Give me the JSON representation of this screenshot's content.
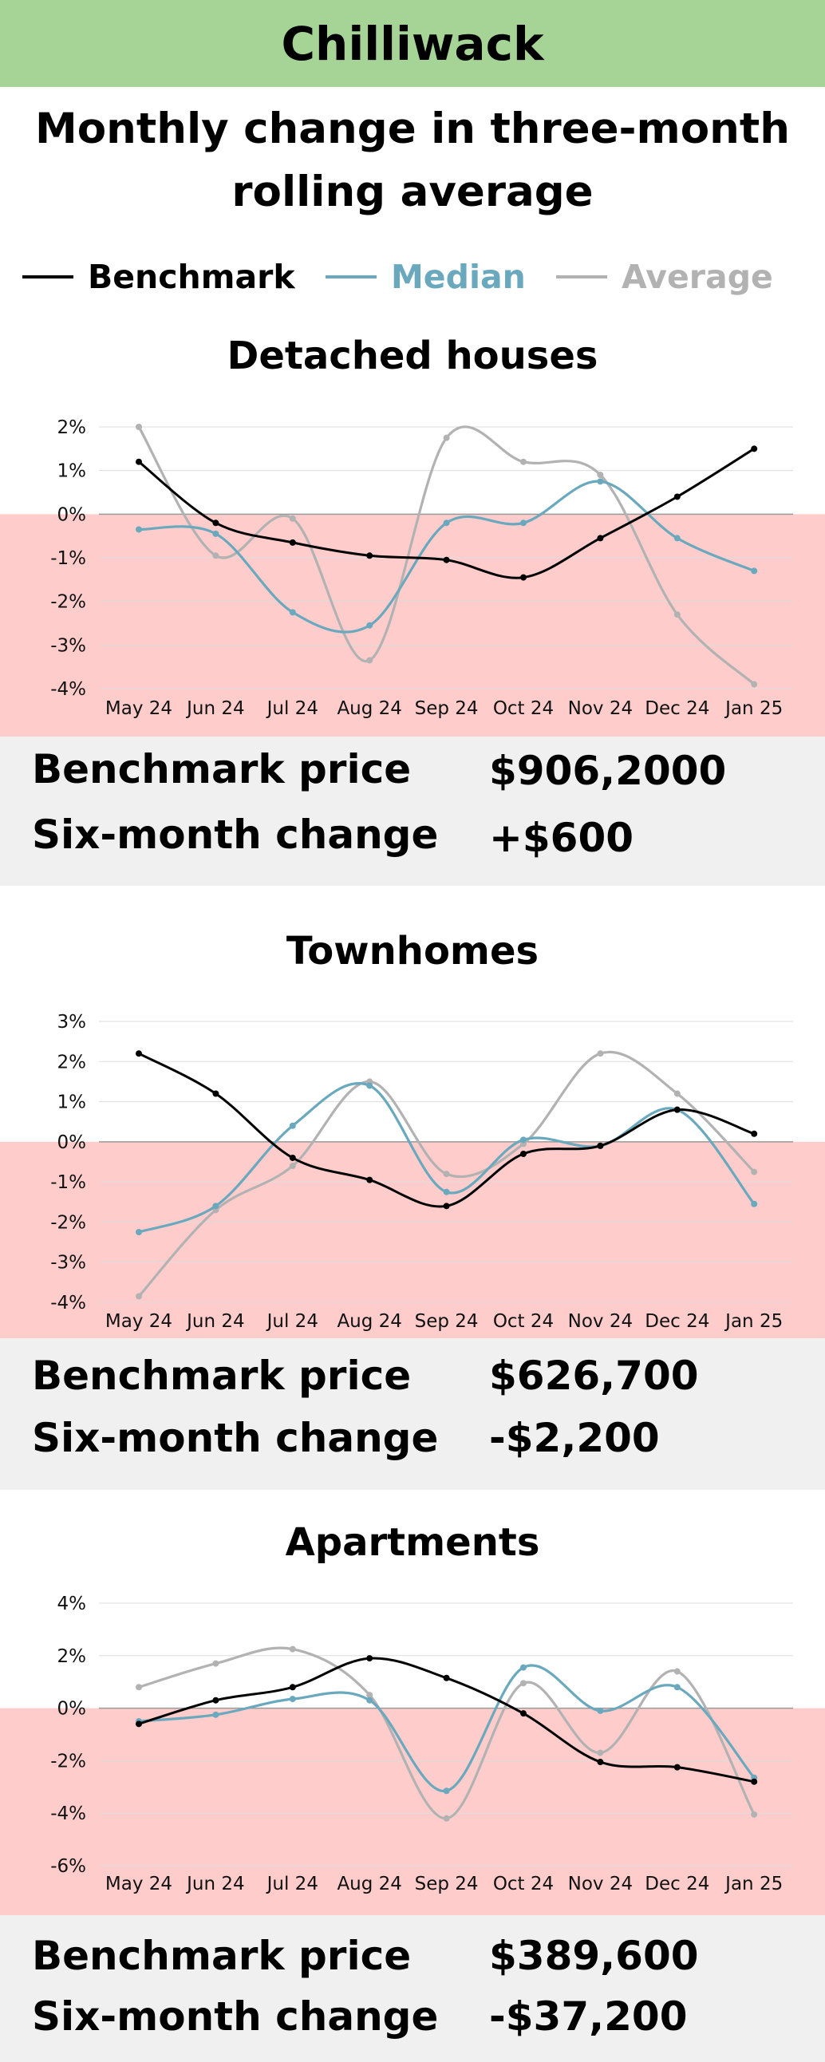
{
  "header": {
    "title": "Chilliwack",
    "bg_color": "#a6d396"
  },
  "subtitle": {
    "line1": "Monthly change in three-month",
    "line2": "rolling average"
  },
  "legend": [
    {
      "label": "Benchmark",
      "color": "#000000"
    },
    {
      "label": "Median",
      "color": "#6aa9bd"
    },
    {
      "label": "Average",
      "color": "#b2b2b2"
    }
  ],
  "colors": {
    "negative_zone": "#ffcccc",
    "stats_bg": "#f0f0f0",
    "grid": "#dddddd",
    "zero_line": "#999999"
  },
  "chart_data": [
    {
      "type": "line",
      "title": "Detached houses",
      "categories": [
        "May 24",
        "Jun 24",
        "Jul 24",
        "Aug 24",
        "Sep 24",
        "Oct 24",
        "Nov 24",
        "Dec 24",
        "Jan 25"
      ],
      "ylim": [
        -4,
        2
      ],
      "yticks": [
        2,
        1,
        0,
        -1,
        -2,
        -3,
        -4
      ],
      "ytick_labels": [
        "2%",
        "1%",
        "0%",
        "-1%",
        "-2%",
        "-3%",
        "-4%"
      ],
      "series": [
        {
          "name": "Benchmark",
          "values": [
            1.2,
            -0.2,
            -0.65,
            -0.95,
            -1.05,
            -1.45,
            -0.55,
            0.4,
            1.5
          ]
        },
        {
          "name": "Median",
          "values": [
            -0.35,
            -0.45,
            -2.25,
            -2.55,
            -0.2,
            -0.2,
            0.75,
            -0.55,
            -1.3
          ]
        },
        {
          "name": "Average",
          "values": [
            2.0,
            -0.95,
            -0.1,
            -3.35,
            1.75,
            1.2,
            0.9,
            -2.3,
            -3.9
          ]
        }
      ],
      "benchmark_price_label": "Benchmark price",
      "benchmark_price": "$906,2000",
      "change_label": "Six-month change",
      "change": "+$600"
    },
    {
      "type": "line",
      "title": "Townhomes",
      "categories": [
        "May 24",
        "Jun 24",
        "Jul 24",
        "Aug 24",
        "Sep 24",
        "Oct 24",
        "Nov 24",
        "Dec 24",
        "Jan 25"
      ],
      "ylim": [
        -4,
        3
      ],
      "yticks": [
        3,
        2,
        1,
        0,
        -1,
        -2,
        -3,
        -4
      ],
      "ytick_labels": [
        "3%",
        "2%",
        "1%",
        "0%",
        "-1%",
        "-2%",
        "-3%",
        "-4%"
      ],
      "series": [
        {
          "name": "Benchmark",
          "values": [
            2.2,
            1.2,
            -0.4,
            -0.95,
            -1.6,
            -0.3,
            -0.1,
            0.8,
            0.2
          ]
        },
        {
          "name": "Median",
          "values": [
            -2.25,
            -1.6,
            0.4,
            1.4,
            -1.25,
            0.05,
            -0.1,
            0.8,
            -1.55
          ]
        },
        {
          "name": "Average",
          "values": [
            -3.85,
            -1.7,
            -0.6,
            1.5,
            -0.8,
            -0.05,
            2.2,
            1.2,
            -0.75
          ]
        }
      ],
      "benchmark_price_label": "Benchmark price",
      "benchmark_price": "$626,700",
      "change_label": "Six-month change",
      "change": "-$2,200"
    },
    {
      "type": "line",
      "title": "Apartments",
      "categories": [
        "May 24",
        "Jun 24",
        "Jul 24",
        "Aug 24",
        "Sep 24",
        "Oct 24",
        "Nov 24",
        "Dec 24",
        "Jan 25"
      ],
      "ylim": [
        -6,
        4
      ],
      "yticks": [
        4,
        2,
        0,
        -2,
        -4,
        -6
      ],
      "ytick_labels": [
        "4%",
        "2%",
        "0%",
        "-2%",
        "-4%",
        "-6%"
      ],
      "series": [
        {
          "name": "Benchmark",
          "values": [
            -0.6,
            0.3,
            0.8,
            1.9,
            1.15,
            -0.2,
            -2.05,
            -2.25,
            -2.8
          ]
        },
        {
          "name": "Median",
          "values": [
            -0.5,
            -0.25,
            0.35,
            0.3,
            -3.15,
            1.55,
            -0.1,
            0.8,
            -2.65
          ]
        },
        {
          "name": "Average",
          "values": [
            0.8,
            1.7,
            2.25,
            0.5,
            -4.2,
            0.95,
            -1.7,
            1.4,
            -4.05
          ]
        }
      ],
      "benchmark_price_label": "Benchmark price",
      "benchmark_price": "$389,600",
      "change_label": "Six-month change",
      "change": "-$37,200"
    }
  ]
}
